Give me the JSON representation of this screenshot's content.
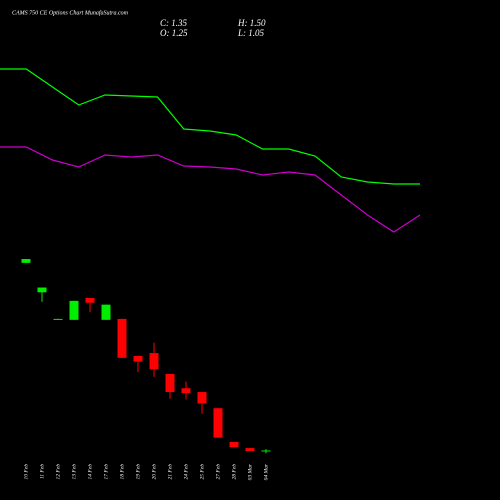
{
  "header": {
    "title": "CAMS 750 CE Options Chart MunafaSutra.com",
    "close": "C: 1.35",
    "high": "H: 1.50",
    "open": "O: 1.25",
    "low": "L: 1.05"
  },
  "chart_data": [
    {
      "type": "line",
      "categories": [
        null,
        null,
        null,
        null,
        null,
        null,
        null,
        null,
        null,
        null,
        null,
        null,
        null,
        null,
        null,
        null,
        null
      ],
      "ylim": [
        0,
        260
      ],
      "series": [
        {
          "color": "#00ff00",
          "values": [
            191,
            191,
            173,
            155,
            165,
            164,
            163,
            131,
            129,
            125,
            111,
            111,
            104,
            83,
            78,
            76,
            76
          ]
        },
        {
          "color": "#cc00cc",
          "values": [
            113,
            113,
            100,
            93,
            105,
            103,
            105,
            94,
            93,
            91,
            85,
            88,
            85,
            65,
            45,
            28,
            45
          ]
        }
      ]
    },
    {
      "type": "candlestick",
      "categories": [
        "10 Feb",
        "11 Feb",
        "12 Feb",
        "13 Feb",
        "14 Feb",
        "17 Feb",
        "18 Feb",
        "19 Feb",
        "20 Feb",
        "21 Feb",
        "24 Feb",
        "25 Feb",
        "27 Feb",
        "28 Feb",
        "03 Mar",
        "04 Mar"
      ],
      "open": [
        21.1,
        18.0,
        15.1,
        15.1,
        17.4,
        15.1,
        15.2,
        11.3,
        11.6,
        9.4,
        7.9,
        7.5,
        5.8,
        2.25,
        1.6,
        1.25
      ],
      "high": [
        21.5,
        18.5,
        15.2,
        17.1,
        17.4,
        16.7,
        15.2,
        11.3,
        12.7,
        9.4,
        8.6,
        7.5,
        5.8,
        2.25,
        1.6,
        1.5
      ],
      "low": [
        21.1,
        17.0,
        15.1,
        15.1,
        15.9,
        15.1,
        11.1,
        9.6,
        9.1,
        6.8,
        6.7,
        5.2,
        2.7,
        1.7,
        1.3,
        1.05
      ],
      "close": [
        21.5,
        18.5,
        15.2,
        17.1,
        16.9,
        16.7,
        11.1,
        10.7,
        9.9,
        7.5,
        7.4,
        6.3,
        2.7,
        1.7,
        1.3,
        1.35
      ],
      "ylim": [
        0.35,
        22.45
      ],
      "up_color": "#00ee00",
      "down_color": "#ff0000"
    }
  ]
}
